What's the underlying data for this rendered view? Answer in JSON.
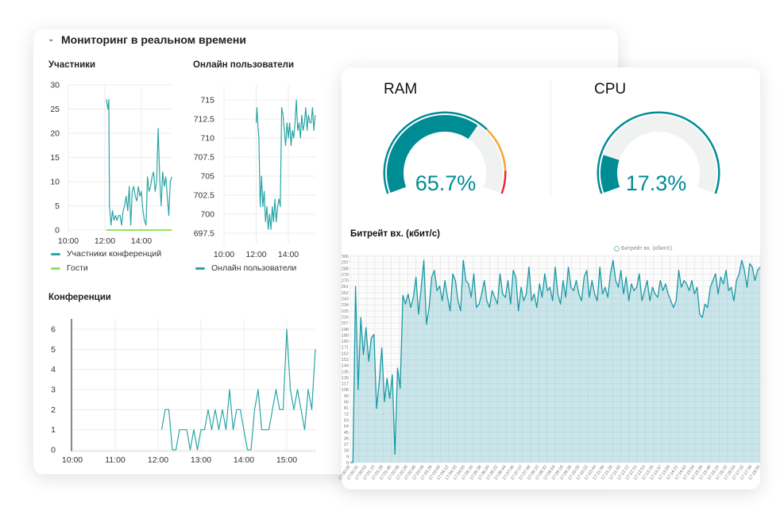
{
  "section": {
    "title": "Мониторинг в реальном времени",
    "collapse_icon": "chevron-down-icon"
  },
  "colors": {
    "teal": "#2aa5a5",
    "green": "#8ee65a",
    "gauge": "#008c95",
    "warning": "#f0a830",
    "danger": "#e8283c",
    "track": "#f0f2f1"
  },
  "gauges": {
    "ram": {
      "title": "RAM",
      "label": "65.7%",
      "value": 65.7,
      "thresholds": [
        70,
        90
      ]
    },
    "cpu": {
      "title": "CPU",
      "label": "17.3%",
      "value": 17.3
    }
  },
  "chart_data": [
    {
      "type": "line",
      "title": "Участники",
      "ylim": [
        0,
        30
      ],
      "yticks": [
        "0",
        "5",
        "10",
        "15",
        "20",
        "25",
        "30"
      ],
      "xticks": [
        "10:00",
        "12:00",
        "14:00"
      ],
      "xlim": [
        "10:00",
        "15:40"
      ],
      "grid": true,
      "legend_position": "bottom",
      "series": [
        {
          "name": "Участники конференций",
          "color": "#2aa5a5",
          "x": [
            "12:05",
            "12:10",
            "12:13",
            "12:15",
            "12:20",
            "12:25",
            "12:30",
            "12:35",
            "12:40",
            "12:45",
            "12:50",
            "12:55",
            "13:00",
            "13:05",
            "13:10",
            "13:15",
            "13:20",
            "13:25",
            "13:30",
            "13:35",
            "13:40",
            "13:45",
            "13:50",
            "13:55",
            "14:00",
            "14:05",
            "14:10",
            "14:15",
            "14:20",
            "14:25",
            "14:30",
            "14:35",
            "14:40",
            "14:45",
            "14:50",
            "14:55",
            "15:00",
            "15:05",
            "15:10",
            "15:15",
            "15:20",
            "15:25",
            "15:30",
            "15:35",
            "15:40"
          ],
          "values": [
            27,
            25,
            27,
            5,
            1,
            4,
            2,
            3,
            2,
            3,
            3,
            1,
            4,
            5,
            7,
            4,
            9,
            1,
            8,
            9,
            7,
            6,
            9,
            7,
            8,
            4,
            2,
            1,
            11,
            8,
            9,
            11,
            12,
            8,
            10,
            21,
            11,
            5,
            12,
            9,
            11,
            7,
            3,
            10,
            11
          ]
        },
        {
          "name": "Гости",
          "color": "#8ee65a",
          "x": [
            "12:05",
            "15:40"
          ],
          "values": [
            0,
            0
          ]
        }
      ]
    },
    {
      "type": "line",
      "title": "Онлайн пользователи",
      "ylim": [
        697.5,
        715
      ],
      "yticks": [
        "697.5",
        "700",
        "702.5",
        "705",
        "707.5",
        "710",
        "712.5",
        "715"
      ],
      "xticks": [
        "10:00",
        "12:00",
        "14:00"
      ],
      "xlim": [
        "10:00",
        "15:40"
      ],
      "grid": true,
      "legend_position": "bottom",
      "series": [
        {
          "name": "Онлайн пользователи",
          "color": "#2aa5a5",
          "x": [
            "12:00",
            "12:03",
            "12:06",
            "12:10",
            "12:15",
            "12:20",
            "12:25",
            "12:30",
            "12:35",
            "12:40",
            "12:45",
            "12:50",
            "12:55",
            "13:00",
            "13:05",
            "13:10",
            "13:15",
            "13:20",
            "13:25",
            "13:30",
            "13:35",
            "13:40",
            "13:45",
            "13:50",
            "13:55",
            "14:00",
            "14:05",
            "14:10",
            "14:15",
            "14:20",
            "14:25",
            "14:30",
            "14:35",
            "14:40",
            "14:45",
            "14:50",
            "14:55",
            "15:00",
            "15:05",
            "15:10",
            "15:15",
            "15:20",
            "15:25",
            "15:30",
            "15:35",
            "15:40"
          ],
          "values": [
            712,
            714,
            712,
            710,
            701,
            705,
            701,
            703,
            699,
            701,
            698,
            700,
            698,
            701,
            699,
            702,
            699,
            701,
            702,
            701,
            714,
            713,
            711,
            709,
            712,
            710,
            712,
            709,
            711,
            710,
            712,
            715,
            711,
            712,
            710,
            713,
            711,
            712,
            714,
            711,
            713,
            712,
            712,
            714,
            711,
            713
          ]
        }
      ]
    },
    {
      "type": "line",
      "title": "Конференции",
      "ylim": [
        0,
        6
      ],
      "yticks": [
        "0",
        "1",
        "2",
        "3",
        "4",
        "5",
        "6"
      ],
      "xticks": [
        "10:00",
        "11:00",
        "12:00",
        "13:00",
        "14:00",
        "15:00"
      ],
      "xlim": [
        "10:00",
        "15:40"
      ],
      "grid": true,
      "series": [
        {
          "color": "#2aa5a5",
          "x": [
            "12:05",
            "12:10",
            "12:15",
            "12:20",
            "12:25",
            "12:30",
            "12:35",
            "12:40",
            "12:45",
            "12:50",
            "12:55",
            "13:00",
            "13:05",
            "13:10",
            "13:15",
            "13:20",
            "13:25",
            "13:30",
            "13:35",
            "13:40",
            "13:45",
            "13:50",
            "13:55",
            "14:00",
            "14:05",
            "14:10",
            "14:15",
            "14:20",
            "14:25",
            "14:30",
            "14:35",
            "14:40",
            "14:45",
            "14:50",
            "14:55",
            "15:00",
            "15:05",
            "15:10",
            "15:15",
            "15:20",
            "15:25",
            "15:30",
            "15:35",
            "15:40"
          ],
          "values": [
            1,
            2,
            2,
            0,
            0,
            1,
            1,
            1,
            0,
            1,
            0,
            1,
            1,
            2,
            1,
            2,
            1,
            2,
            1,
            3,
            1,
            2,
            2,
            1,
            0,
            0,
            2,
            3,
            1,
            1,
            1,
            2,
            3,
            2,
            2,
            6,
            3,
            2,
            3,
            2,
            1,
            3,
            2,
            5
          ]
        }
      ]
    },
    {
      "type": "area",
      "title": "Битрейт вх. (кбит/с)",
      "ylim": [
        0,
        306
      ],
      "yticks": [
        "0",
        "9",
        "18",
        "27",
        "36",
        "45",
        "54",
        "63",
        "72",
        "81",
        "90",
        "99",
        "108",
        "117",
        "126",
        "135",
        "144",
        "153",
        "162",
        "171",
        "180",
        "189",
        "198",
        "207",
        "216",
        "225",
        "234",
        "243",
        "252",
        "261",
        "270",
        "279",
        "288",
        "297",
        "306"
      ],
      "xticks": [
        "17:00:00",
        "17:00:31",
        "17:00:53",
        "17:01:10",
        "17:01:28",
        "17:01:46",
        "17:02:08",
        "17:02:26",
        "17:02:48",
        "17:03:08",
        "17:03:28",
        "17:03:50",
        "17:04:12",
        "17:04:33",
        "17:04:55",
        "17:05:16",
        "17:05:38",
        "17:06:00",
        "17:06:22",
        "17:06:44",
        "17:07:06",
        "17:07:27",
        "17:07:48",
        "17:08:10",
        "17:08:32",
        "17:08:54",
        "17:09:16",
        "17:09:38",
        "17:10:00",
        "17:10:22",
        "17:10:44",
        "17:11:06",
        "17:11:28",
        "17:11:50",
        "17:12:12",
        "17:12:31",
        "17:12:53",
        "17:13:15",
        "17:13:37",
        "17:13:59",
        "17:14:21",
        "17:14:43",
        "17:15:04",
        "17:15:26",
        "17:15:48",
        "17:16:10",
        "17:16:32",
        "17:16:54",
        "17:17:16",
        "17:17:38",
        "17:18:00"
      ],
      "grid": true,
      "legend_position": "top-right",
      "series": [
        {
          "name": "Битрейт вх. (кбит/с)",
          "color": "#1a9aa5",
          "values": [
            0,
            0,
            261,
            108,
            215,
            160,
            200,
            150,
            185,
            190,
            80,
            120,
            170,
            90,
            125,
            95,
            130,
            12,
            140,
            110,
            248,
            235,
            250,
            230,
            245,
            275,
            220,
            260,
            300,
            205,
            230,
            275,
            285,
            255,
            262,
            240,
            270,
            245,
            225,
            280,
            270,
            240,
            225,
            300,
            270,
            265,
            245,
            280,
            230,
            235,
            250,
            270,
            240,
            230,
            255,
            245,
            235,
            280,
            250,
            245,
            270,
            235,
            285,
            275,
            225,
            260,
            240,
            250,
            290,
            240,
            250,
            230,
            265,
            245,
            280,
            255,
            260,
            240,
            290,
            250,
            235,
            270,
            245,
            290,
            260,
            255,
            270,
            250,
            240,
            275,
            285,
            245,
            270,
            250,
            240,
            290,
            250,
            260,
            245,
            280,
            300,
            270,
            260,
            285,
            250,
            275,
            240,
            265,
            255,
            260,
            280,
            240,
            255,
            270,
            240,
            260,
            250,
            245,
            270,
            255,
            265,
            250,
            240,
            230,
            240,
            285,
            260,
            270,
            265,
            255,
            270,
            250,
            260,
            220,
            215,
            235,
            230,
            260,
            270,
            280,
            250,
            275,
            265,
            285,
            255,
            260,
            240,
            270,
            280,
            300,
            285,
            260,
            295,
            290,
            270,
            285,
            290
          ]
        }
      ]
    }
  ]
}
